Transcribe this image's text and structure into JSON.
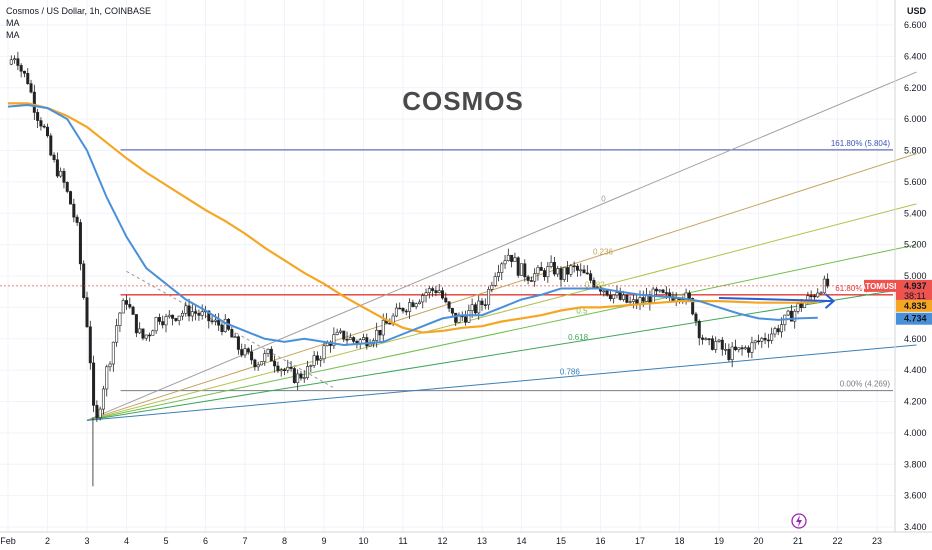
{
  "header": {
    "symbol_line": "Cosmos / US Dollar, 1h, COINBASE",
    "indicators": [
      "MA",
      "MA"
    ]
  },
  "overlay_title": "COSMOS",
  "price_axis": {
    "currency": "USD",
    "ticks": [
      "6.600",
      "6.400",
      "6.200",
      "6.000",
      "5.800",
      "5.600",
      "5.400",
      "5.200",
      "5.000",
      "4.800",
      "4.600",
      "4.400",
      "4.200",
      "4.000",
      "3.800",
      "3.600",
      "3.400"
    ]
  },
  "time_axis": {
    "ticks": [
      "Feb",
      "2",
      "3",
      "4",
      "5",
      "6",
      "7",
      "8",
      "9",
      "10",
      "11",
      "12",
      "13",
      "14",
      "15",
      "16",
      "17",
      "18",
      "19",
      "20",
      "21",
      "22",
      "23"
    ]
  },
  "fib_labels": {
    "ext_161": "161.80% (5.804)",
    "ext_61": "61.80% (4.880)",
    "ext_0": "0.00% (4.269)",
    "fan": [
      "0",
      "0.236",
      "0.382",
      "0.5",
      "0.618",
      "0.786"
    ]
  },
  "price_badges": {
    "ticker": "ATOMUSD",
    "last": "4.937",
    "countdown": "38:11",
    "ma1": "4.835",
    "ma2": "4.734"
  },
  "colors": {
    "up": "#26a69a",
    "down": "#ef5350",
    "candle_body": "#222222",
    "ma_fast": "#4a90d9",
    "ma_slow": "#f5a623",
    "fib_161": "#3f51b5",
    "fib_61": "#e53935",
    "fib_0": "#787b86"
  },
  "chart_data": {
    "type": "candlestick",
    "x_unit": "days since Feb 1",
    "y_unit": "USD",
    "ylim": [
      3.4,
      6.6
    ],
    "xlim": [
      0,
      23.3
    ],
    "price_path": [
      [
        0,
        6.35
      ],
      [
        0.2,
        6.42
      ],
      [
        0.35,
        6.3
      ],
      [
        0.5,
        6.25
      ],
      [
        0.7,
        6.05
      ],
      [
        0.9,
        5.95
      ],
      [
        1.1,
        5.75
      ],
      [
        1.4,
        5.6
      ],
      [
        1.6,
        5.45
      ],
      [
        1.75,
        5.3
      ],
      [
        1.9,
        4.9
      ],
      [
        2.05,
        4.6
      ],
      [
        2.15,
        4.2
      ],
      [
        2.2,
        4.0
      ],
      [
        2.3,
        4.15
      ],
      [
        2.45,
        4.35
      ],
      [
        2.6,
        4.5
      ],
      [
        2.8,
        4.75
      ],
      [
        3.0,
        4.85
      ],
      [
        3.2,
        4.7
      ],
      [
        3.4,
        4.6
      ],
      [
        3.6,
        4.65
      ],
      [
        3.8,
        4.75
      ],
      [
        4.0,
        4.72
      ],
      [
        4.3,
        4.76
      ],
      [
        4.6,
        4.78
      ],
      [
        4.9,
        4.75
      ],
      [
        5.2,
        4.7
      ],
      [
        5.5,
        4.68
      ],
      [
        5.8,
        4.55
      ],
      [
        6.0,
        4.5
      ],
      [
        6.3,
        4.45
      ],
      [
        6.6,
        4.5
      ],
      [
        6.9,
        4.42
      ],
      [
        7.1,
        4.38
      ],
      [
        7.3,
        4.35
      ],
      [
        7.6,
        4.4
      ],
      [
        7.9,
        4.5
      ],
      [
        8.2,
        4.6
      ],
      [
        8.5,
        4.62
      ],
      [
        8.8,
        4.58
      ],
      [
        9.1,
        4.6
      ],
      [
        9.4,
        4.65
      ],
      [
        9.7,
        4.72
      ],
      [
        10.0,
        4.8
      ],
      [
        10.3,
        4.85
      ],
      [
        10.6,
        4.9
      ],
      [
        10.9,
        4.92
      ],
      [
        11.1,
        4.8
      ],
      [
        11.3,
        4.72
      ],
      [
        11.6,
        4.75
      ],
      [
        11.9,
        4.8
      ],
      [
        12.1,
        4.85
      ],
      [
        12.3,
        5.02
      ],
      [
        12.5,
        5.1
      ],
      [
        12.7,
        5.15
      ],
      [
        12.9,
        5.05
      ],
      [
        13.2,
        5.0
      ],
      [
        13.5,
        5.02
      ],
      [
        13.8,
        5.05
      ],
      [
        14.0,
        5.0
      ],
      [
        14.3,
        5.05
      ],
      [
        14.6,
        5.0
      ],
      [
        14.9,
        4.95
      ],
      [
        15.2,
        4.9
      ],
      [
        15.5,
        4.85
      ],
      [
        15.8,
        4.82
      ],
      [
        16.1,
        4.85
      ],
      [
        16.4,
        4.88
      ],
      [
        16.7,
        4.86
      ],
      [
        17.0,
        4.9
      ],
      [
        17.3,
        4.82
      ],
      [
        17.5,
        4.65
      ],
      [
        17.7,
        4.55
      ],
      [
        17.9,
        4.58
      ],
      [
        18.2,
        4.5
      ],
      [
        18.5,
        4.52
      ],
      [
        18.8,
        4.55
      ],
      [
        19.1,
        4.6
      ],
      [
        19.4,
        4.65
      ],
      [
        19.7,
        4.72
      ],
      [
        20.0,
        4.8
      ],
      [
        20.3,
        4.86
      ],
      [
        20.6,
        4.94
      ],
      [
        20.8,
        4.937
      ]
    ],
    "ma_fast": [
      [
        0,
        6.08
      ],
      [
        0.5,
        6.09
      ],
      [
        1.0,
        6.07
      ],
      [
        1.5,
        6.0
      ],
      [
        2.0,
        5.8
      ],
      [
        2.5,
        5.5
      ],
      [
        3.0,
        5.25
      ],
      [
        3.5,
        5.05
      ],
      [
        4.0,
        4.95
      ],
      [
        4.5,
        4.85
      ],
      [
        5.0,
        4.78
      ],
      [
        5.5,
        4.7
      ],
      [
        6.0,
        4.65
      ],
      [
        6.5,
        4.6
      ],
      [
        7.0,
        4.58
      ],
      [
        7.5,
        4.6
      ],
      [
        8.0,
        4.58
      ],
      [
        8.5,
        4.56
      ],
      [
        9.0,
        4.57
      ],
      [
        9.5,
        4.58
      ],
      [
        10.0,
        4.63
      ],
      [
        10.5,
        4.68
      ],
      [
        11.0,
        4.73
      ],
      [
        11.5,
        4.75
      ],
      [
        12.0,
        4.75
      ],
      [
        12.5,
        4.8
      ],
      [
        13.0,
        4.85
      ],
      [
        13.5,
        4.88
      ],
      [
        14.0,
        4.92
      ],
      [
        14.5,
        4.92
      ],
      [
        15.0,
        4.92
      ],
      [
        15.5,
        4.9
      ],
      [
        16.0,
        4.88
      ],
      [
        16.5,
        4.87
      ],
      [
        17.0,
        4.86
      ],
      [
        17.5,
        4.84
      ],
      [
        18.0,
        4.8
      ],
      [
        18.5,
        4.76
      ],
      [
        19.0,
        4.73
      ],
      [
        19.5,
        4.72
      ],
      [
        20.0,
        4.73
      ],
      [
        20.5,
        4.734
      ]
    ],
    "ma_slow": [
      [
        0,
        6.1
      ],
      [
        0.5,
        6.1
      ],
      [
        1.0,
        6.07
      ],
      [
        1.5,
        6.02
      ],
      [
        2.0,
        5.95
      ],
      [
        2.5,
        5.85
      ],
      [
        3.0,
        5.75
      ],
      [
        3.5,
        5.66
      ],
      [
        4.0,
        5.58
      ],
      [
        4.5,
        5.5
      ],
      [
        5.0,
        5.42
      ],
      [
        5.5,
        5.35
      ],
      [
        6.0,
        5.27
      ],
      [
        6.5,
        5.18
      ],
      [
        7.0,
        5.1
      ],
      [
        7.5,
        5.02
      ],
      [
        8.0,
        4.95
      ],
      [
        8.5,
        4.87
      ],
      [
        9.0,
        4.8
      ],
      [
        9.5,
        4.73
      ],
      [
        10.0,
        4.67
      ],
      [
        10.5,
        4.64
      ],
      [
        11.0,
        4.65
      ],
      [
        11.5,
        4.67
      ],
      [
        12.0,
        4.68
      ],
      [
        12.5,
        4.71
      ],
      [
        13.0,
        4.73
      ],
      [
        13.5,
        4.75
      ],
      [
        14.0,
        4.78
      ],
      [
        14.5,
        4.8
      ],
      [
        15.0,
        4.8
      ],
      [
        15.5,
        4.81
      ],
      [
        16.0,
        4.82
      ],
      [
        16.5,
        4.83
      ],
      [
        17.0,
        4.84
      ],
      [
        17.5,
        4.84
      ],
      [
        18.0,
        4.84
      ],
      [
        18.5,
        4.835
      ],
      [
        19.0,
        4.83
      ],
      [
        19.5,
        4.83
      ],
      [
        20.0,
        4.83
      ],
      [
        20.5,
        4.835
      ]
    ],
    "levels": [
      {
        "name": "161.80%",
        "price": 5.804
      },
      {
        "name": "61.80%",
        "price": 4.88
      },
      {
        "name": "0.00%",
        "price": 4.269
      }
    ],
    "fan": {
      "origin": [
        2.0,
        4.08
      ],
      "rays": [
        {
          "label": "0",
          "to": [
            23.0,
            6.3
          ],
          "color": "#a0a0a0"
        },
        {
          "label": "0.236",
          "to": [
            23.0,
            5.78
          ],
          "color": "#c4a45a"
        },
        {
          "label": "0.382",
          "to": [
            23.0,
            5.46
          ],
          "color": "#b4c04a"
        },
        {
          "label": "0.5",
          "to": [
            23.0,
            5.2
          ],
          "color": "#6fbf4a"
        },
        {
          "label": "0.618",
          "to": [
            23.0,
            4.93
          ],
          "color": "#3fa65a"
        },
        {
          "label": "0.786",
          "to": [
            23.0,
            4.56
          ],
          "color": "#3a7fb5"
        }
      ]
    },
    "dashed_line": [
      [
        3.0,
        5.03
      ],
      [
        8.3,
        4.28
      ]
    ],
    "projection_arrow": [
      [
        18.0,
        4.86
      ],
      [
        20.9,
        4.84
      ]
    ]
  }
}
